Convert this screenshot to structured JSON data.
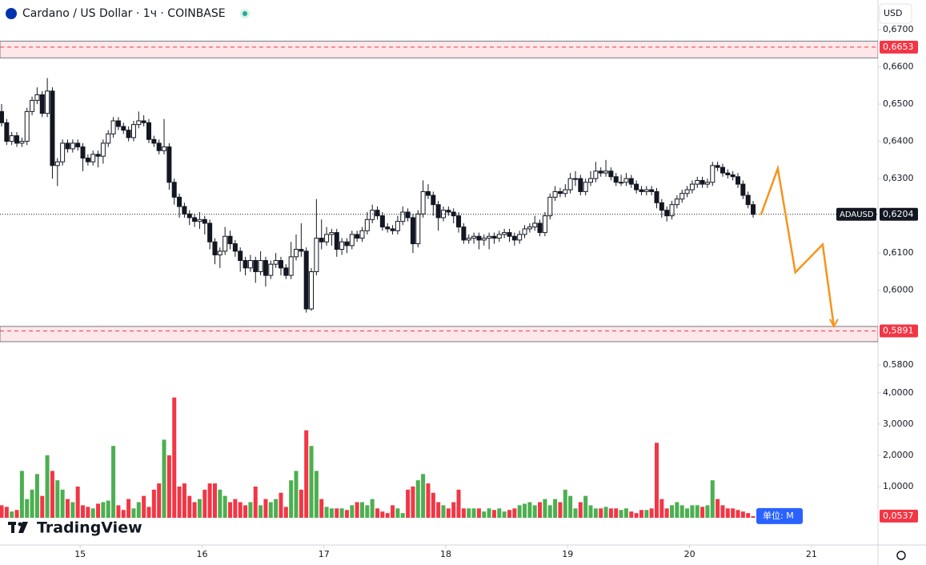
{
  "chart_data": {
    "type": "candlestick",
    "title": "Cardano / US Dollar · 1ч · COINBASE",
    "currency": "USD",
    "brand": "TradingView",
    "xlim": [
      14.342,
      21.546
    ],
    "xticks": [
      15,
      16,
      17,
      18,
      19,
      20,
      21
    ],
    "ylim": [
      0.5791,
      0.6715
    ],
    "yticks": [
      {
        "value": 0.67,
        "label": "0,6700"
      },
      {
        "value": 0.66,
        "label": "0,6600"
      },
      {
        "value": 0.65,
        "label": "0,6500"
      },
      {
        "value": 0.64,
        "label": "0,6400"
      },
      {
        "value": 0.63,
        "label": "0,6300"
      },
      {
        "value": 0.61,
        "label": "0,6100"
      },
      {
        "value": 0.6,
        "label": "0,6000"
      },
      {
        "value": 0.58,
        "label": "0.5800"
      }
    ],
    "up_color": "#ffffff",
    "down_color": "#131722",
    "candles": [
      [
        0.648,
        0.65,
        0.644,
        0.645
      ],
      [
        0.645,
        0.646,
        0.639,
        0.64
      ],
      [
        0.64,
        0.6425,
        0.639,
        0.6415
      ],
      [
        0.6415,
        0.6425,
        0.6385,
        0.6395
      ],
      [
        0.6395,
        0.641,
        0.6385,
        0.64
      ],
      [
        0.64,
        0.649,
        0.639,
        0.648
      ],
      [
        0.648,
        0.652,
        0.647,
        0.651
      ],
      [
        0.651,
        0.6545,
        0.65,
        0.6525
      ],
      [
        0.6525,
        0.6535,
        0.6465,
        0.6475
      ],
      [
        0.6475,
        0.657,
        0.6465,
        0.6535
      ],
      [
        0.6535,
        0.6545,
        0.63,
        0.6335
      ],
      [
        0.6335,
        0.6355,
        0.628,
        0.6345
      ],
      [
        0.6345,
        0.6405,
        0.6335,
        0.6395
      ],
      [
        0.6395,
        0.6405,
        0.637,
        0.638
      ],
      [
        0.638,
        0.6405,
        0.637,
        0.6395
      ],
      [
        0.6395,
        0.6405,
        0.6375,
        0.6385
      ],
      [
        0.6385,
        0.6395,
        0.632,
        0.6355
      ],
      [
        0.6355,
        0.6365,
        0.6335,
        0.6345
      ],
      [
        0.6345,
        0.6375,
        0.6335,
        0.6365
      ],
      [
        0.6365,
        0.6375,
        0.633,
        0.636
      ],
      [
        0.636,
        0.6405,
        0.634,
        0.6395
      ],
      [
        0.6395,
        0.643,
        0.6385,
        0.642
      ],
      [
        0.642,
        0.6465,
        0.641,
        0.6455
      ],
      [
        0.6455,
        0.6465,
        0.643,
        0.644
      ],
      [
        0.644,
        0.645,
        0.642,
        0.643
      ],
      [
        0.643,
        0.644,
        0.64,
        0.641
      ],
      [
        0.641,
        0.6455,
        0.64,
        0.6445
      ],
      [
        0.6445,
        0.648,
        0.6435,
        0.6455
      ],
      [
        0.6455,
        0.647,
        0.644,
        0.645
      ],
      [
        0.645,
        0.646,
        0.6395,
        0.6405
      ],
      [
        0.6405,
        0.6415,
        0.6385,
        0.6395
      ],
      [
        0.6395,
        0.6405,
        0.6365,
        0.6375
      ],
      [
        0.6375,
        0.646,
        0.6365,
        0.6385
      ],
      [
        0.6385,
        0.6395,
        0.627,
        0.629
      ],
      [
        0.629,
        0.63,
        0.623,
        0.625
      ],
      [
        0.625,
        0.626,
        0.6195,
        0.6225
      ],
      [
        0.6225,
        0.6235,
        0.6195,
        0.6205
      ],
      [
        0.6205,
        0.6215,
        0.6175,
        0.6195
      ],
      [
        0.6195,
        0.6205,
        0.617,
        0.6185
      ],
      [
        0.6185,
        0.621,
        0.6165,
        0.619
      ],
      [
        0.619,
        0.62,
        0.615,
        0.618
      ],
      [
        0.618,
        0.619,
        0.611,
        0.613
      ],
      [
        0.613,
        0.614,
        0.607,
        0.6095
      ],
      [
        0.6095,
        0.6115,
        0.606,
        0.6105
      ],
      [
        0.6105,
        0.617,
        0.6095,
        0.6145
      ],
      [
        0.6145,
        0.616,
        0.611,
        0.6125
      ],
      [
        0.6125,
        0.6135,
        0.609,
        0.6105
      ],
      [
        0.6105,
        0.6115,
        0.605,
        0.608
      ],
      [
        0.608,
        0.609,
        0.604,
        0.606
      ],
      [
        0.606,
        0.6095,
        0.605,
        0.608
      ],
      [
        0.608,
        0.609,
        0.602,
        0.605
      ],
      [
        0.605,
        0.6105,
        0.604,
        0.608
      ],
      [
        0.608,
        0.609,
        0.601,
        0.604
      ],
      [
        0.604,
        0.608,
        0.603,
        0.607
      ],
      [
        0.607,
        0.61,
        0.606,
        0.608
      ],
      [
        0.608,
        0.609,
        0.604,
        0.606
      ],
      [
        0.606,
        0.607,
        0.603,
        0.604
      ],
      [
        0.604,
        0.613,
        0.603,
        0.609
      ],
      [
        0.609,
        0.615,
        0.608,
        0.611
      ],
      [
        0.611,
        0.618,
        0.609,
        0.6105
      ],
      [
        0.6105,
        0.6115,
        0.594,
        0.595
      ],
      [
        0.595,
        0.606,
        0.5945,
        0.605
      ],
      [
        0.605,
        0.6245,
        0.604,
        0.614
      ],
      [
        0.614,
        0.619,
        0.611,
        0.613
      ],
      [
        0.613,
        0.617,
        0.612,
        0.615
      ],
      [
        0.615,
        0.6165,
        0.612,
        0.6155
      ],
      [
        0.6155,
        0.6165,
        0.609,
        0.611
      ],
      [
        0.611,
        0.614,
        0.6095,
        0.613
      ],
      [
        0.613,
        0.614,
        0.61,
        0.612
      ],
      [
        0.612,
        0.616,
        0.611,
        0.615
      ],
      [
        0.615,
        0.616,
        0.613,
        0.614
      ],
      [
        0.614,
        0.617,
        0.613,
        0.616
      ],
      [
        0.616,
        0.621,
        0.615,
        0.619
      ],
      [
        0.619,
        0.623,
        0.618,
        0.6215
      ],
      [
        0.6215,
        0.6225,
        0.619,
        0.62
      ],
      [
        0.62,
        0.621,
        0.616,
        0.617
      ],
      [
        0.617,
        0.618,
        0.6155,
        0.6165
      ],
      [
        0.6165,
        0.6175,
        0.615,
        0.616
      ],
      [
        0.616,
        0.62,
        0.615,
        0.6185
      ],
      [
        0.6185,
        0.6225,
        0.6175,
        0.621
      ],
      [
        0.621,
        0.622,
        0.6185,
        0.6195
      ],
      [
        0.6195,
        0.6205,
        0.61,
        0.6125
      ],
      [
        0.6125,
        0.6215,
        0.6115,
        0.6205
      ],
      [
        0.6205,
        0.6295,
        0.6195,
        0.6265
      ],
      [
        0.6265,
        0.6285,
        0.6245,
        0.6255
      ],
      [
        0.6255,
        0.6265,
        0.62,
        0.623
      ],
      [
        0.623,
        0.624,
        0.616,
        0.6195
      ],
      [
        0.6195,
        0.6225,
        0.6185,
        0.6215
      ],
      [
        0.6215,
        0.6225,
        0.62,
        0.621
      ],
      [
        0.621,
        0.622,
        0.618,
        0.62
      ],
      [
        0.62,
        0.621,
        0.6155,
        0.617
      ],
      [
        0.617,
        0.618,
        0.6125,
        0.6135
      ],
      [
        0.6135,
        0.615,
        0.6125,
        0.614
      ],
      [
        0.614,
        0.6155,
        0.6125,
        0.6145
      ],
      [
        0.6145,
        0.6155,
        0.611,
        0.6135
      ],
      [
        0.6135,
        0.615,
        0.612,
        0.614
      ],
      [
        0.614,
        0.6155,
        0.611,
        0.6145
      ],
      [
        0.6145,
        0.6155,
        0.6125,
        0.614
      ],
      [
        0.614,
        0.616,
        0.613,
        0.615
      ],
      [
        0.615,
        0.6165,
        0.614,
        0.6155
      ],
      [
        0.6155,
        0.6165,
        0.613,
        0.6145
      ],
      [
        0.6145,
        0.6155,
        0.612,
        0.6135
      ],
      [
        0.6135,
        0.616,
        0.6125,
        0.615
      ],
      [
        0.615,
        0.6175,
        0.614,
        0.6165
      ],
      [
        0.6165,
        0.618,
        0.6155,
        0.617
      ],
      [
        0.617,
        0.62,
        0.616,
        0.618
      ],
      [
        0.618,
        0.619,
        0.6145,
        0.6155
      ],
      [
        0.6155,
        0.621,
        0.6145,
        0.62
      ],
      [
        0.62,
        0.626,
        0.619,
        0.625
      ],
      [
        0.625,
        0.628,
        0.624,
        0.6265
      ],
      [
        0.6265,
        0.6275,
        0.625,
        0.626
      ],
      [
        0.626,
        0.6285,
        0.625,
        0.627
      ],
      [
        0.627,
        0.6315,
        0.626,
        0.63
      ],
      [
        0.63,
        0.632,
        0.628,
        0.63
      ],
      [
        0.63,
        0.631,
        0.6255,
        0.6265
      ],
      [
        0.6265,
        0.63,
        0.6255,
        0.629
      ],
      [
        0.629,
        0.632,
        0.628,
        0.63
      ],
      [
        0.63,
        0.6345,
        0.629,
        0.632
      ],
      [
        0.632,
        0.633,
        0.6305,
        0.6315
      ],
      [
        0.6315,
        0.635,
        0.6305,
        0.632
      ],
      [
        0.632,
        0.633,
        0.6295,
        0.6305
      ],
      [
        0.6305,
        0.6315,
        0.628,
        0.629
      ],
      [
        0.629,
        0.631,
        0.628,
        0.629
      ],
      [
        0.629,
        0.6315,
        0.628,
        0.63
      ],
      [
        0.63,
        0.631,
        0.6275,
        0.6285
      ],
      [
        0.6285,
        0.6295,
        0.626,
        0.627
      ],
      [
        0.627,
        0.628,
        0.6255,
        0.6265
      ],
      [
        0.6265,
        0.628,
        0.6255,
        0.627
      ],
      [
        0.627,
        0.628,
        0.6255,
        0.6265
      ],
      [
        0.6265,
        0.6275,
        0.622,
        0.6235
      ],
      [
        0.6235,
        0.6245,
        0.6195,
        0.6215
      ],
      [
        0.6215,
        0.6225,
        0.6185,
        0.62
      ],
      [
        0.62,
        0.624,
        0.619,
        0.623
      ],
      [
        0.623,
        0.6255,
        0.622,
        0.6245
      ],
      [
        0.6245,
        0.627,
        0.6235,
        0.626
      ],
      [
        0.626,
        0.628,
        0.625,
        0.627
      ],
      [
        0.627,
        0.6295,
        0.626,
        0.6285
      ],
      [
        0.6285,
        0.6305,
        0.6275,
        0.6295
      ],
      [
        0.6295,
        0.6305,
        0.6275,
        0.6285
      ],
      [
        0.6285,
        0.63,
        0.6275,
        0.629
      ],
      [
        0.629,
        0.6345,
        0.628,
        0.6335
      ],
      [
        0.6335,
        0.6345,
        0.632,
        0.633
      ],
      [
        0.633,
        0.634,
        0.6305,
        0.6315
      ],
      [
        0.6315,
        0.6325,
        0.63,
        0.631
      ],
      [
        0.631,
        0.632,
        0.6295,
        0.6305
      ],
      [
        0.6305,
        0.6315,
        0.6275,
        0.6285
      ],
      [
        0.6285,
        0.6295,
        0.6245,
        0.6255
      ],
      [
        0.6255,
        0.6265,
        0.622,
        0.623
      ],
      [
        0.623,
        0.624,
        0.6195,
        0.6204
      ]
    ],
    "last_price": {
      "symbol": "ADAUSD",
      "value": 0.6204,
      "label": "0,6204"
    },
    "zones": [
      {
        "from": 0.6624,
        "to": 0.6669,
        "level": {
          "value": 0.6653,
          "label": "0,6653"
        }
      },
      {
        "from": 0.5862,
        "to": 0.5903,
        "level": {
          "value": 0.5891,
          "label": "0,5891"
        }
      }
    ],
    "zone_color": "#f23645",
    "projection": {
      "x": [
        20.585,
        20.724,
        20.868,
        21.092,
        21.184
      ],
      "y": [
        0.6202,
        0.6327,
        0.6048,
        0.6123,
        0.5903
      ],
      "color": "#f7931a"
    },
    "volume": {
      "unit_label": "单位: M",
      "ylim": [
        0,
        4.79
      ],
      "yticks": [
        {
          "value": 4,
          "label": "4,0000"
        },
        {
          "value": 3,
          "label": "3,0000"
        },
        {
          "value": 2,
          "label": "2,0000"
        },
        {
          "value": 1,
          "label": "1,0000"
        }
      ],
      "up_color": "#4caf50",
      "down_color": "#f23645",
      "values": [
        0.4,
        0.35,
        0.2,
        0.25,
        1.5,
        0.6,
        0.9,
        1.4,
        0.7,
        2.0,
        1.5,
        1.2,
        0.9,
        0.6,
        0.5,
        1.0,
        0.4,
        0.35,
        0.3,
        0.45,
        0.5,
        0.55,
        2.3,
        0.4,
        0.25,
        0.6,
        0.3,
        0.5,
        0.7,
        0.35,
        0.9,
        1.1,
        2.5,
        2.0,
        3.85,
        1.0,
        1.1,
        0.7,
        0.5,
        0.6,
        0.9,
        1.1,
        1.1,
        0.9,
        0.7,
        0.5,
        0.6,
        0.5,
        0.4,
        0.5,
        1.0,
        0.4,
        0.6,
        0.5,
        0.6,
        0.8,
        0.35,
        1.2,
        1.5,
        0.9,
        2.8,
        2.3,
        1.5,
        0.6,
        0.35,
        0.3,
        0.3,
        0.3,
        0.25,
        0.4,
        0.5,
        0.5,
        0.4,
        0.6,
        0.3,
        0.2,
        0.15,
        0.4,
        0.3,
        0.15,
        0.9,
        1.0,
        1.2,
        1.4,
        1.1,
        0.8,
        0.5,
        0.4,
        0.3,
        0.5,
        0.9,
        0.3,
        0.3,
        0.3,
        0.3,
        0.2,
        0.3,
        0.25,
        0.3,
        0.2,
        0.25,
        0.3,
        0.4,
        0.45,
        0.5,
        0.4,
        0.5,
        0.6,
        0.4,
        0.6,
        0.5,
        0.9,
        0.7,
        0.3,
        0.5,
        0.7,
        0.4,
        0.3,
        0.3,
        0.35,
        0.3,
        0.3,
        0.25,
        0.3,
        0.2,
        0.15,
        0.25,
        0.25,
        0.3,
        2.4,
        0.6,
        0.3,
        0.4,
        0.5,
        0.4,
        0.3,
        0.4,
        0.4,
        0.35,
        0.4,
        1.2,
        0.6,
        0.4,
        0.3,
        0.3,
        0.25,
        0.2,
        0.15,
        0.0537
      ],
      "last": {
        "value": 0.0537,
        "label": "0,0537"
      }
    }
  }
}
